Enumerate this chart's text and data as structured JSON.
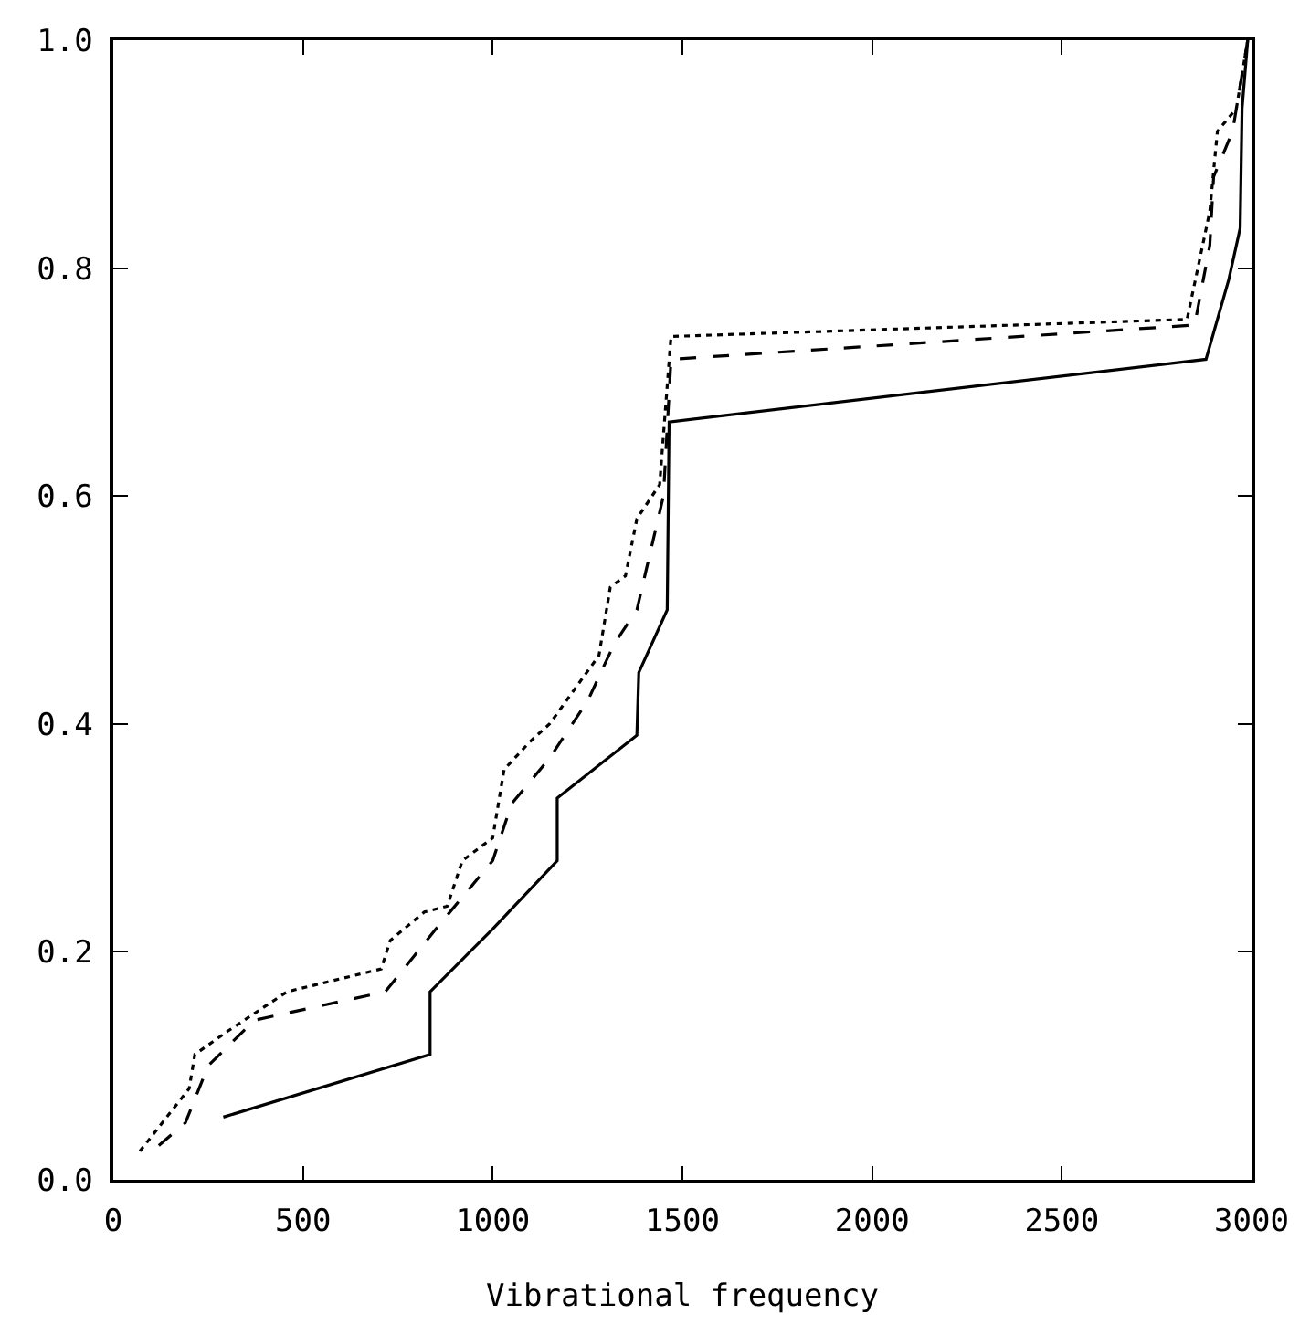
{
  "chart_data": {
    "type": "line",
    "xlabel": "Vibrational frequency",
    "xlim": [
      0,
      3000
    ],
    "ylim": [
      0,
      1
    ],
    "xticks": [
      0,
      500,
      1000,
      1500,
      2000,
      2500,
      3000
    ],
    "yticks": [
      {
        "value": 0,
        "label": "0.0"
      },
      {
        "value": 0.2,
        "label": "0.2"
      },
      {
        "value": 0.4,
        "label": "0.4"
      },
      {
        "value": 0.6,
        "label": "0.6"
      },
      {
        "value": 0.8,
        "label": "0.8"
      },
      {
        "value": 1,
        "label": "1.0"
      }
    ],
    "marker": "none",
    "series": [
      {
        "color": "#000000",
        "line_style": "solid",
        "x": [
          290,
          835,
          835,
          1000,
          1170,
          1170,
          1380,
          1385,
          1460,
          1465,
          2880,
          2940,
          2970,
          2975,
          2990
        ],
        "values": [
          0.055,
          0.11,
          0.165,
          0.22,
          0.28,
          0.335,
          0.39,
          0.445,
          0.5,
          0.665,
          0.72,
          0.79,
          0.835,
          0.94,
          1.0
        ]
      },
      {
        "color": "#000000",
        "line_style": "dashed",
        "x": [
          120,
          190,
          250,
          372,
          717,
          850,
          1000,
          1050,
          1150,
          1250,
          1320,
          1380,
          1450,
          1470,
          2850,
          2890,
          2900,
          2950,
          2990
        ],
        "values": [
          0.03,
          0.05,
          0.1,
          0.14,
          0.165,
          0.22,
          0.28,
          0.33,
          0.37,
          0.42,
          0.47,
          0.5,
          0.6,
          0.72,
          0.75,
          0.82,
          0.88,
          0.92,
          1.0
        ]
      },
      {
        "color": "#000000",
        "line_style": "dotted",
        "x": [
          70,
          200,
          215,
          300,
          458,
          706,
          730,
          820,
          880,
          920,
          1000,
          1030,
          1100,
          1150,
          1280,
          1310,
          1350,
          1380,
          1440,
          1470,
          2830,
          2890,
          2910,
          2960,
          2990
        ],
        "values": [
          0.025,
          0.08,
          0.11,
          0.13,
          0.165,
          0.185,
          0.21,
          0.235,
          0.24,
          0.28,
          0.3,
          0.36,
          0.385,
          0.4,
          0.46,
          0.52,
          0.53,
          0.58,
          0.61,
          0.74,
          0.755,
          0.85,
          0.92,
          0.94,
          1.0
        ]
      }
    ]
  }
}
